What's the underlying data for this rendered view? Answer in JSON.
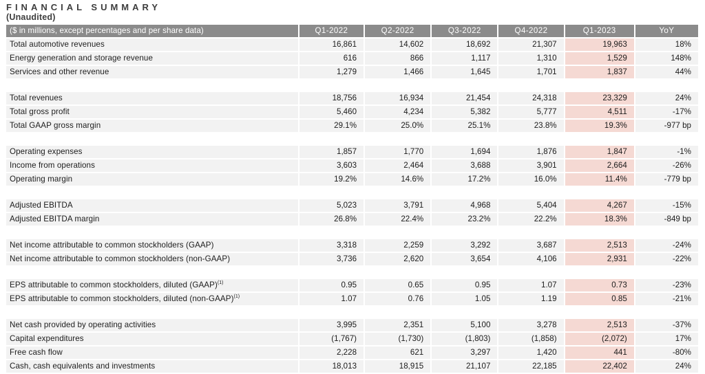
{
  "title": "FINANCIAL SUMMARY",
  "subtitle": "(Unaudited)",
  "colors": {
    "header_bg": "#8b8b8b",
    "header_text": "#ffffff",
    "row_bg": "#f2f2f2",
    "highlight_bg": "#f5d9d3",
    "text": "#1c1c1c",
    "title_color": "#3d3d3d"
  },
  "table": {
    "label_header": "($ in millions, except percentages and per share data)",
    "columns": [
      "Q1-2022",
      "Q2-2022",
      "Q3-2022",
      "Q4-2022",
      "Q1-2023",
      "YoY"
    ],
    "highlight_column": "Q1-2023",
    "sections": [
      {
        "rows": [
          {
            "label": "Total automotive revenues",
            "values": [
              "16,861",
              "14,602",
              "18,692",
              "21,307",
              "19,963",
              "18%"
            ]
          },
          {
            "label": "Energy generation and storage revenue",
            "values": [
              "616",
              "866",
              "1,117",
              "1,310",
              "1,529",
              "148%"
            ]
          },
          {
            "label": "Services and other revenue",
            "values": [
              "1,279",
              "1,466",
              "1,645",
              "1,701",
              "1,837",
              "44%"
            ]
          }
        ]
      },
      {
        "rows": [
          {
            "label": "Total revenues",
            "values": [
              "18,756",
              "16,934",
              "21,454",
              "24,318",
              "23,329",
              "24%"
            ]
          },
          {
            "label": "Total gross profit",
            "values": [
              "5,460",
              "4,234",
              "5,382",
              "5,777",
              "4,511",
              "-17%"
            ]
          },
          {
            "label": "Total GAAP gross margin",
            "values": [
              "29.1%",
              "25.0%",
              "25.1%",
              "23.8%",
              "19.3%",
              "-977 bp"
            ]
          }
        ]
      },
      {
        "rows": [
          {
            "label": "Operating expenses",
            "values": [
              "1,857",
              "1,770",
              "1,694",
              "1,876",
              "1,847",
              "-1%"
            ]
          },
          {
            "label": "Income from operations",
            "values": [
              "3,603",
              "2,464",
              "3,688",
              "3,901",
              "2,664",
              "-26%"
            ]
          },
          {
            "label": "Operating margin",
            "values": [
              "19.2%",
              "14.6%",
              "17.2%",
              "16.0%",
              "11.4%",
              "-779 bp"
            ]
          }
        ]
      },
      {
        "rows": [
          {
            "label": "Adjusted EBITDA",
            "values": [
              "5,023",
              "3,791",
              "4,968",
              "5,404",
              "4,267",
              "-15%"
            ]
          },
          {
            "label": "Adjusted EBITDA margin",
            "values": [
              "26.8%",
              "22.4%",
              "23.2%",
              "22.2%",
              "18.3%",
              "-849 bp"
            ]
          }
        ]
      },
      {
        "rows": [
          {
            "label": "Net income attributable to common stockholders (GAAP)",
            "values": [
              "3,318",
              "2,259",
              "3,292",
              "3,687",
              "2,513",
              "-24%"
            ]
          },
          {
            "label": "Net income attributable to common stockholders (non-GAAP)",
            "values": [
              "3,736",
              "2,620",
              "3,654",
              "4,106",
              "2,931",
              "-22%"
            ]
          }
        ]
      },
      {
        "rows": [
          {
            "label": "EPS attributable to common stockholders, diluted (GAAP)",
            "label_superscript": "(1)",
            "values": [
              "0.95",
              "0.65",
              "0.95",
              "1.07",
              "0.73",
              "-23%"
            ]
          },
          {
            "label": "EPS attributable to common stockholders, diluted (non-GAAP)",
            "label_superscript": "(1)",
            "values": [
              "1.07",
              "0.76",
              "1.05",
              "1.19",
              "0.85",
              "-21%"
            ]
          }
        ]
      },
      {
        "rows": [
          {
            "label": "Net cash provided by operating activities",
            "values": [
              "3,995",
              "2,351",
              "5,100",
              "3,278",
              "2,513",
              "-37%"
            ]
          },
          {
            "label": "Capital expenditures",
            "values": [
              "(1,767)",
              "(1,730)",
              "(1,803)",
              "(1,858)",
              "(2,072)",
              "17%"
            ]
          },
          {
            "label": "Free cash flow",
            "values": [
              "2,228",
              "621",
              "3,297",
              "1,420",
              "441",
              "-80%"
            ]
          },
          {
            "label": "Cash, cash equivalents and investments",
            "values": [
              "18,013",
              "18,915",
              "21,107",
              "22,185",
              "22,402",
              "24%"
            ]
          }
        ]
      }
    ]
  }
}
